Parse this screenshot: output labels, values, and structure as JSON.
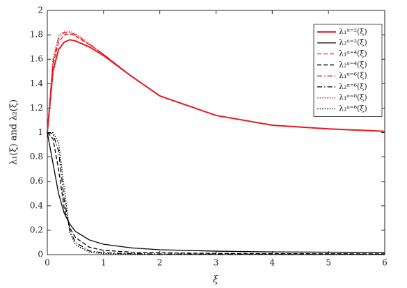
{
  "chart_data": {
    "type": "line",
    "x_label": "ξ",
    "y_label": "λ₁(ξ) and λ₂(ξ)",
    "x": [
      0,
      0.1,
      0.2,
      0.3,
      0.4,
      0.5,
      0.75,
      1,
      1.5,
      2,
      3,
      4,
      5,
      6
    ],
    "xlim": [
      0,
      6
    ],
    "xticks": [
      0,
      1,
      2,
      3,
      4,
      5,
      6
    ],
    "ylim": [
      0,
      2
    ],
    "yticks": [
      0,
      0.2,
      0.4,
      0.6,
      0.8,
      1,
      1.2,
      1.4,
      1.6,
      1.8,
      2
    ],
    "legend_position": "upper right",
    "series": [
      {
        "name": "λ₁ᵅ⁼²(ξ)",
        "color": "#e41a1c",
        "line_style": "solid",
        "line_width": 2,
        "values": [
          1,
          1.5,
          1.68,
          1.74,
          1.76,
          1.75,
          1.7,
          1.63,
          1.46,
          1.3,
          1.14,
          1.06,
          1.03,
          1.01
        ]
      },
      {
        "name": "λ₂ᵅ⁼²(ξ)",
        "color": "#000000",
        "line_style": "solid",
        "line_width": 1.3,
        "values": [
          1,
          0.75,
          0.5,
          0.34,
          0.25,
          0.19,
          0.12,
          0.085,
          0.055,
          0.04,
          0.028,
          0.022,
          0.02,
          0.018
        ]
      },
      {
        "name": "λ₁ᵅ⁼⁴(ξ)",
        "color": "#e41a1c",
        "line_style": "dashed",
        "line_width": 1.3,
        "values": [
          1,
          1.55,
          1.74,
          1.8,
          1.81,
          1.79,
          1.72,
          1.64,
          1.46,
          1.3,
          1.14,
          1.06,
          1.03,
          1.01
        ]
      },
      {
        "name": "λ₂ᵅ⁼⁴(ξ)",
        "color": "#000000",
        "line_style": "dashed",
        "line_width": 1.3,
        "values": [
          1,
          0.95,
          0.7,
          0.38,
          0.22,
          0.14,
          0.06,
          0.035,
          0.02,
          0.015,
          0.01,
          0.008,
          0.007,
          0.006
        ]
      },
      {
        "name": "λ₁ᵅ⁼⁶(ξ)",
        "color": "#e41a1c",
        "line_style": "dashdot",
        "line_width": 1.3,
        "values": [
          1,
          1.58,
          1.77,
          1.82,
          1.82,
          1.8,
          1.72,
          1.64,
          1.46,
          1.3,
          1.14,
          1.06,
          1.03,
          1.01
        ]
      },
      {
        "name": "λ₂ᵅ⁼⁶(ξ)",
        "color": "#000000",
        "line_style": "dashdot",
        "line_width": 1.3,
        "values": [
          1,
          0.99,
          0.85,
          0.45,
          0.2,
          0.1,
          0.03,
          0.015,
          0.008,
          0.005,
          0.004,
          0.003,
          0.003,
          0.002
        ]
      },
      {
        "name": "λ₁ᵅ⁼⁸(ξ)",
        "color": "#e41a1c",
        "line_style": "dotted",
        "line_width": 1.3,
        "values": [
          1,
          1.6,
          1.79,
          1.83,
          1.83,
          1.81,
          1.73,
          1.64,
          1.46,
          1.3,
          1.14,
          1.06,
          1.03,
          1.01
        ]
      },
      {
        "name": "λ₂ᵅ⁼⁸(ξ)",
        "color": "#000000",
        "line_style": "dotted",
        "line_width": 1.3,
        "values": [
          1,
          1.0,
          0.92,
          0.55,
          0.18,
          0.08,
          0.02,
          0.008,
          0.004,
          0.003,
          0.002,
          0.001,
          0.001,
          0.001
        ]
      }
    ]
  }
}
